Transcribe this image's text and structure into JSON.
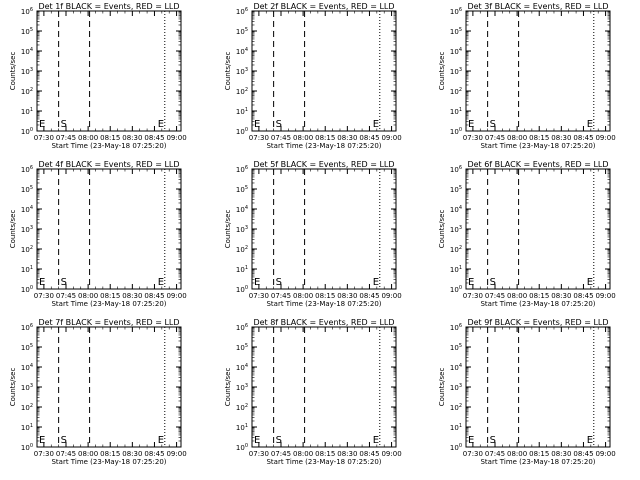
{
  "shared": {
    "ylabel": "Counts/sec",
    "xlabel": "Start Time (23-May-18 07:25:20)",
    "x_ticks": [
      "07:30",
      "07:45",
      "08:00",
      "08:15",
      "08:30",
      "08:45",
      "09:00"
    ],
    "y_ticks": [
      {
        "base": "10",
        "exp": "0"
      },
      {
        "base": "10",
        "exp": "1"
      },
      {
        "base": "10",
        "exp": "2"
      },
      {
        "base": "10",
        "exp": "3"
      },
      {
        "base": "10",
        "exp": "4"
      },
      {
        "base": "10",
        "exp": "5"
      },
      {
        "base": "10",
        "exp": "6"
      }
    ],
    "marker_S": "S",
    "marker_E": "E"
  },
  "chart_data": [
    {
      "type": "line",
      "title": "Det 1f BLACK = Events, RED = LLD",
      "y_scale": "log",
      "ylim": [
        1,
        1000000
      ],
      "xlim": [
        "07:25:20",
        "09:03:00"
      ],
      "series": [],
      "lines": [
        {
          "time": "07:25:20",
          "style": "dotted"
        },
        {
          "time": "07:40:00",
          "style": "dashed"
        },
        {
          "time": "08:01:00",
          "style": "dashed"
        },
        {
          "time": "08:52:00",
          "style": "dotted"
        },
        {
          "time": "09:03:00",
          "style": "dotted"
        }
      ]
    },
    {
      "type": "line",
      "title": "Det 2f BLACK = Events, RED = LLD",
      "y_scale": "log",
      "ylim": [
        1,
        1000000
      ],
      "xlim": [
        "07:25:20",
        "09:03:00"
      ],
      "series": [],
      "lines": [
        {
          "time": "07:25:20",
          "style": "dotted"
        },
        {
          "time": "07:40:00",
          "style": "dashed"
        },
        {
          "time": "08:01:00",
          "style": "dashed"
        },
        {
          "time": "08:52:00",
          "style": "dotted"
        },
        {
          "time": "09:03:00",
          "style": "dotted"
        }
      ]
    },
    {
      "type": "line",
      "title": "Det 3f BLACK = Events, RED = LLD",
      "y_scale": "log",
      "ylim": [
        1,
        1000000
      ],
      "xlim": [
        "07:25:20",
        "09:03:00"
      ],
      "series": [],
      "lines": [
        {
          "time": "07:25:20",
          "style": "dotted"
        },
        {
          "time": "07:40:00",
          "style": "dashed"
        },
        {
          "time": "08:01:00",
          "style": "dashed"
        },
        {
          "time": "08:52:00",
          "style": "dotted"
        },
        {
          "time": "09:03:00",
          "style": "dotted"
        }
      ]
    },
    {
      "type": "line",
      "title": "Det 4f BLACK = Events, RED = LLD",
      "y_scale": "log",
      "ylim": [
        1,
        1000000
      ],
      "xlim": [
        "07:25:20",
        "09:03:00"
      ],
      "series": [],
      "lines": [
        {
          "time": "07:25:20",
          "style": "dotted"
        },
        {
          "time": "07:40:00",
          "style": "dashed"
        },
        {
          "time": "08:01:00",
          "style": "dashed"
        },
        {
          "time": "08:52:00",
          "style": "dotted"
        },
        {
          "time": "09:03:00",
          "style": "dotted"
        }
      ]
    },
    {
      "type": "line",
      "title": "Det 5f BLACK = Events, RED = LLD",
      "y_scale": "log",
      "ylim": [
        1,
        1000000
      ],
      "xlim": [
        "07:25:20",
        "09:03:00"
      ],
      "series": [],
      "lines": [
        {
          "time": "07:25:20",
          "style": "dotted"
        },
        {
          "time": "07:40:00",
          "style": "dashed"
        },
        {
          "time": "08:01:00",
          "style": "dashed"
        },
        {
          "time": "08:52:00",
          "style": "dotted"
        },
        {
          "time": "09:03:00",
          "style": "dotted"
        }
      ]
    },
    {
      "type": "line",
      "title": "Det 6f BLACK = Events, RED = LLD",
      "y_scale": "log",
      "ylim": [
        1,
        1000000
      ],
      "xlim": [
        "07:25:20",
        "09:03:00"
      ],
      "series": [],
      "lines": [
        {
          "time": "07:25:20",
          "style": "dotted"
        },
        {
          "time": "07:40:00",
          "style": "dashed"
        },
        {
          "time": "08:01:00",
          "style": "dashed"
        },
        {
          "time": "08:52:00",
          "style": "dotted"
        },
        {
          "time": "09:03:00",
          "style": "dotted"
        }
      ]
    },
    {
      "type": "line",
      "title": "Det 7f BLACK = Events, RED = LLD",
      "y_scale": "log",
      "ylim": [
        1,
        1000000
      ],
      "xlim": [
        "07:25:20",
        "09:03:00"
      ],
      "series": [],
      "lines": [
        {
          "time": "07:25:20",
          "style": "dotted"
        },
        {
          "time": "07:40:00",
          "style": "dashed"
        },
        {
          "time": "08:01:00",
          "style": "dashed"
        },
        {
          "time": "08:52:00",
          "style": "dotted"
        },
        {
          "time": "09:03:00",
          "style": "dotted"
        }
      ]
    },
    {
      "type": "line",
      "title": "Det 8f BLACK = Events, RED = LLD",
      "y_scale": "log",
      "ylim": [
        1,
        1000000
      ],
      "xlim": [
        "07:25:20",
        "09:03:00"
      ],
      "series": [],
      "lines": [
        {
          "time": "07:25:20",
          "style": "dotted"
        },
        {
          "time": "07:40:00",
          "style": "dashed"
        },
        {
          "time": "08:01:00",
          "style": "dashed"
        },
        {
          "time": "08:52:00",
          "style": "dotted"
        },
        {
          "time": "09:03:00",
          "style": "dotted"
        }
      ]
    },
    {
      "type": "line",
      "title": "Det 9f BLACK = Events, RED = LLD",
      "y_scale": "log",
      "ylim": [
        1,
        1000000
      ],
      "xlim": [
        "07:25:20",
        "09:03:00"
      ],
      "series": [],
      "lines": [
        {
          "time": "07:25:20",
          "style": "dotted"
        },
        {
          "time": "07:40:00",
          "style": "dashed"
        },
        {
          "time": "08:01:00",
          "style": "dashed"
        },
        {
          "time": "08:52:00",
          "style": "dotted"
        },
        {
          "time": "09:03:00",
          "style": "dotted"
        }
      ]
    }
  ]
}
